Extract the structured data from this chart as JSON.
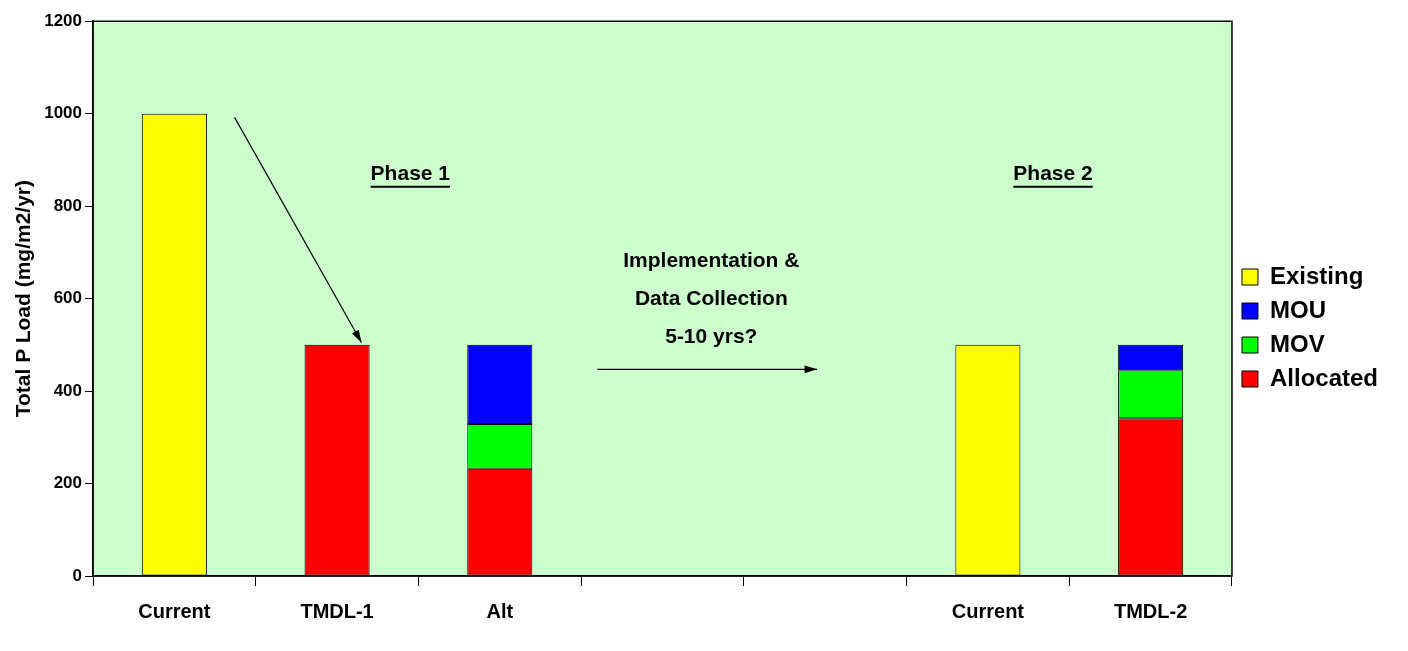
{
  "chart_data": {
    "type": "bar",
    "stacked": true,
    "categories": [
      "Current",
      "TMDL-1",
      "Alt",
      null,
      null,
      "Current",
      "TMDL-2"
    ],
    "ylabel": "Total P Load (mg/m2/yr)",
    "ylim": [
      0,
      1200
    ],
    "yticks": [
      0,
      200,
      400,
      600,
      800,
      1000,
      1200
    ],
    "grid": false,
    "legend": "right",
    "series": [
      {
        "name": "Allocated",
        "color": "#ff0000",
        "values": [
          null,
          500,
          232,
          null,
          null,
          null,
          341
        ]
      },
      {
        "name": "MOV",
        "color": "#00ff00",
        "values": [
          null,
          null,
          97,
          null,
          null,
          null,
          104
        ]
      },
      {
        "name": "MOU",
        "color": "#0000ff",
        "values": [
          null,
          null,
          171,
          null,
          null,
          null,
          55
        ]
      },
      {
        "name": "Existing",
        "color": "#ffff00",
        "values": [
          1000,
          null,
          null,
          null,
          null,
          500,
          null
        ]
      }
    ],
    "annotations": [
      "Phase 1",
      "Phase 2",
      "Implementation &\nData Collection\n5-10 yrs?"
    ]
  }
}
